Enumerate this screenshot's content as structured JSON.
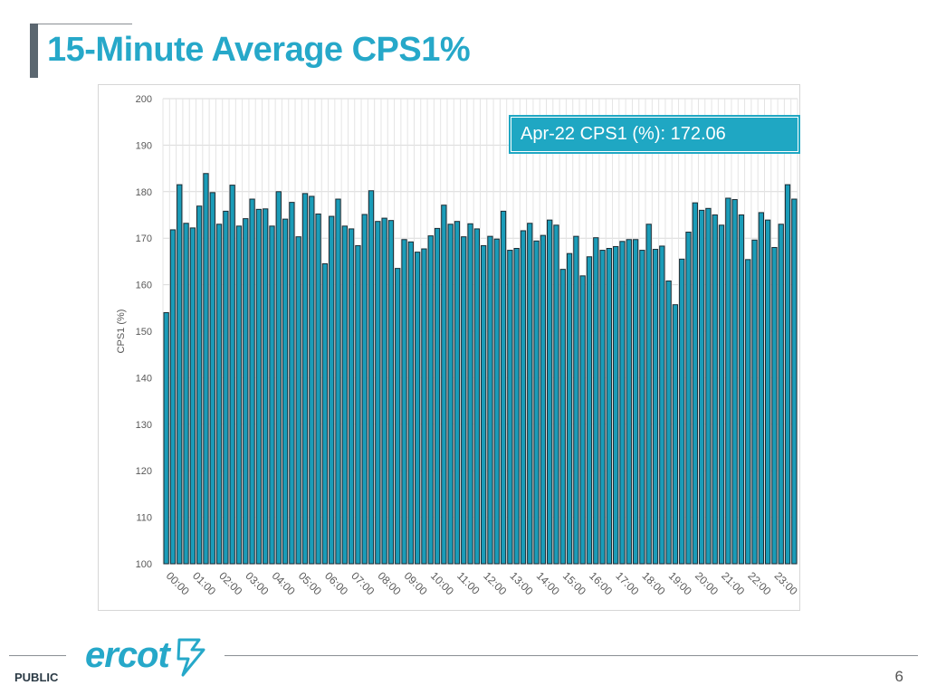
{
  "slide": {
    "title": "15-Minute Average CPS1%",
    "callout": "Apr-22 CPS1 (%): 172.06",
    "footer_label": "PUBLIC",
    "page_number": "6",
    "brand": "ercot",
    "accent_color": "#26a8c9"
  },
  "chart_data": {
    "type": "bar",
    "title": "",
    "xlabel": "",
    "ylabel": "CPS1 (%)",
    "ylim": [
      100,
      200
    ],
    "yticks": [
      100,
      110,
      120,
      130,
      140,
      150,
      160,
      170,
      180,
      190,
      200
    ],
    "grid": true,
    "bar_color": "#1a9cb8",
    "bar_edge_color": "#1c2b33",
    "tick_labels": [
      "00:00",
      "01:00",
      "02:00",
      "03:00",
      "04:00",
      "05:00",
      "06:00",
      "07:00",
      "08:00",
      "09:00",
      "10:00",
      "11:00",
      "12:00",
      "13:00",
      "14:00",
      "15:00",
      "16:00",
      "17:00",
      "18:00",
      "19:00",
      "20:00",
      "21:00",
      "22:00",
      "23:00"
    ],
    "values": [
      154.0,
      171.8,
      181.5,
      173.2,
      172.2,
      176.9,
      183.9,
      179.8,
      173.0,
      175.8,
      181.4,
      172.6,
      174.2,
      178.4,
      176.2,
      176.3,
      172.6,
      180.0,
      174.1,
      177.7,
      170.3,
      179.6,
      179.0,
      175.2,
      164.5,
      174.7,
      178.4,
      172.6,
      172.0,
      168.4,
      175.1,
      180.2,
      173.6,
      174.3,
      173.8,
      163.5,
      169.7,
      169.2,
      167.0,
      167.7,
      170.5,
      172.1,
      177.1,
      173.0,
      173.6,
      170.3,
      173.1,
      172.0,
      168.4,
      170.4,
      169.8,
      175.8,
      167.4,
      167.8,
      171.6,
      173.2,
      169.4,
      170.6,
      173.9,
      172.8,
      163.3,
      166.7,
      170.4,
      161.9,
      166.0,
      170.1,
      167.4,
      167.8,
      168.2,
      169.3,
      169.7,
      169.7,
      167.4,
      173.0,
      167.6,
      168.3,
      160.8,
      155.7,
      165.5,
      171.3,
      177.6,
      176.0,
      176.4,
      175.0,
      172.8,
      178.6,
      178.3,
      175.0,
      165.4,
      169.6,
      175.5,
      173.9,
      168.0,
      173.0,
      181.5,
      178.4
    ]
  }
}
